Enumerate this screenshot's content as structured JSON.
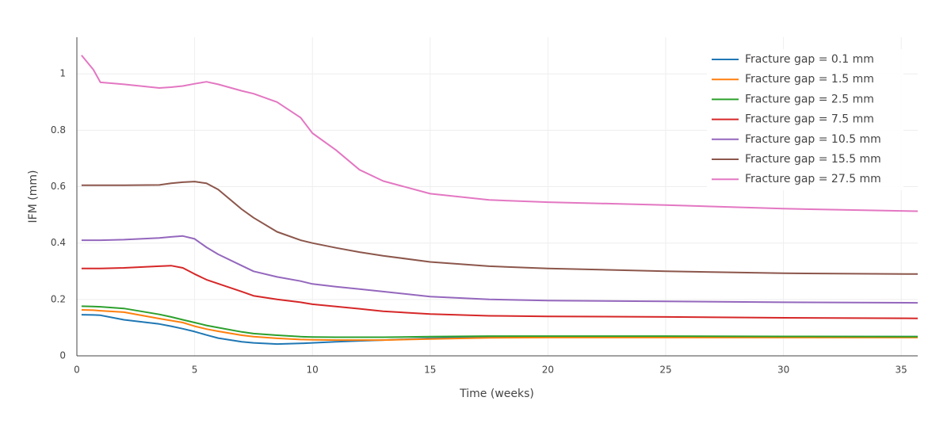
{
  "chart_data": {
    "type": "line",
    "xlabel": "Time (weeks)",
    "ylabel": "IFM (mm)",
    "x": [
      0.2,
      0.7,
      1,
      2,
      3.5,
      4,
      4.5,
      5,
      5.5,
      6,
      7,
      7.5,
      8.5,
      9.5,
      10,
      11,
      12,
      13,
      15,
      17.5,
      20,
      25,
      30,
      35.7
    ],
    "series": [
      {
        "name": "Fracture gap = 0.1 mm",
        "color": "#1f77b4",
        "values": [
          0.146,
          0.145,
          0.144,
          0.128,
          0.113,
          0.105,
          0.096,
          0.086,
          0.074,
          0.063,
          0.05,
          0.046,
          0.042,
          0.044,
          0.046,
          0.05,
          0.053,
          0.056,
          0.062,
          0.067,
          0.068,
          0.068,
          0.068,
          0.068
        ]
      },
      {
        "name": "Fracture gap = 1.5 mm",
        "color": "#ff7f0e",
        "values": [
          0.163,
          0.162,
          0.16,
          0.155,
          0.132,
          0.125,
          0.118,
          0.105,
          0.095,
          0.087,
          0.073,
          0.068,
          0.062,
          0.058,
          0.057,
          0.056,
          0.056,
          0.056,
          0.06,
          0.064,
          0.065,
          0.065,
          0.065,
          0.065
        ]
      },
      {
        "name": "Fracture gap = 2.5 mm",
        "color": "#2ca02c",
        "values": [
          0.176,
          0.175,
          0.174,
          0.168,
          0.147,
          0.138,
          0.128,
          0.118,
          0.108,
          0.1,
          0.085,
          0.079,
          0.073,
          0.068,
          0.067,
          0.066,
          0.066,
          0.066,
          0.068,
          0.07,
          0.07,
          0.07,
          0.069,
          0.068
        ]
      },
      {
        "name": "Fracture gap = 7.5 mm",
        "color": "#d62728",
        "values": [
          0.31,
          0.31,
          0.31,
          0.312,
          0.318,
          0.32,
          0.312,
          0.29,
          0.27,
          0.256,
          0.228,
          0.213,
          0.2,
          0.19,
          0.183,
          0.175,
          0.167,
          0.158,
          0.148,
          0.142,
          0.14,
          0.138,
          0.135,
          0.133
        ]
      },
      {
        "name": "Fracture gap = 10.5 mm",
        "color": "#9467bd",
        "values": [
          0.41,
          0.41,
          0.41,
          0.412,
          0.418,
          0.422,
          0.425,
          0.415,
          0.385,
          0.36,
          0.32,
          0.3,
          0.28,
          0.265,
          0.255,
          0.245,
          0.237,
          0.228,
          0.21,
          0.2,
          0.196,
          0.193,
          0.19,
          0.188
        ]
      },
      {
        "name": "Fracture gap = 15.5 mm",
        "color": "#8c564b",
        "values": [
          0.605,
          0.605,
          0.605,
          0.605,
          0.606,
          0.612,
          0.616,
          0.618,
          0.612,
          0.59,
          0.52,
          0.49,
          0.44,
          0.41,
          0.4,
          0.383,
          0.368,
          0.355,
          0.333,
          0.318,
          0.31,
          0.3,
          0.293,
          0.29
        ]
      },
      {
        "name": "Fracture gap = 27.5 mm",
        "color": "#e377c2",
        "values": [
          1.066,
          1.015,
          0.97,
          0.963,
          0.95,
          0.953,
          0.957,
          0.965,
          0.972,
          0.963,
          0.94,
          0.93,
          0.9,
          0.845,
          0.79,
          0.73,
          0.66,
          0.62,
          0.575,
          0.553,
          0.545,
          0.535,
          0.522,
          0.513
        ]
      }
    ],
    "xlim": [
      0,
      35.7
    ],
    "xticks": [
      0,
      5,
      10,
      15,
      20,
      25,
      30,
      35
    ],
    "ylim": [
      0,
      1.13
    ],
    "yticks": [
      0,
      0.2,
      0.4,
      0.6,
      0.8,
      1
    ],
    "grid": true,
    "legend": "top-right"
  }
}
